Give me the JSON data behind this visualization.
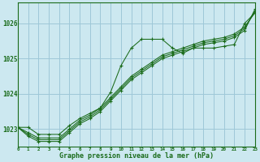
{
  "title": "Graphe pression niveau de la mer (hPa)",
  "background_color": "#cce8f0",
  "grid_color": "#9ec8d8",
  "line_color": "#1a6b1a",
  "xlim": [
    0,
    23
  ],
  "ylim": [
    1022.5,
    1026.6
  ],
  "yticks": [
    1023,
    1024,
    1025,
    1026
  ],
  "xticks": [
    0,
    1,
    2,
    3,
    4,
    5,
    6,
    7,
    8,
    9,
    10,
    11,
    12,
    13,
    14,
    15,
    16,
    17,
    18,
    19,
    20,
    21,
    22,
    23
  ],
  "series": [
    {
      "y": [
        1023.05,
        1023.05,
        1022.85,
        1022.85,
        1022.85,
        1023.1,
        1023.3,
        1023.45,
        1023.6,
        1024.05,
        1024.8,
        1025.3,
        1025.55,
        1025.55,
        1025.55,
        1025.3,
        1025.15,
        1025.3,
        1025.3,
        1025.3,
        1025.35,
        1025.4,
        1026.0,
        1026.3
      ]
    },
    {
      "y": [
        1023.05,
        1022.9,
        1022.75,
        1022.75,
        1022.75,
        1023.0,
        1023.25,
        1023.4,
        1023.6,
        1023.9,
        1024.2,
        1024.5,
        1024.7,
        1024.9,
        1025.1,
        1025.2,
        1025.3,
        1025.4,
        1025.5,
        1025.55,
        1025.6,
        1025.7,
        1025.9,
        1026.3
      ]
    },
    {
      "y": [
        1023.05,
        1022.85,
        1022.7,
        1022.7,
        1022.7,
        1022.95,
        1023.2,
        1023.35,
        1023.55,
        1023.85,
        1024.15,
        1024.45,
        1024.65,
        1024.85,
        1025.05,
        1025.15,
        1025.25,
        1025.35,
        1025.45,
        1025.5,
        1025.55,
        1025.65,
        1025.85,
        1026.35
      ]
    },
    {
      "y": [
        1023.05,
        1022.8,
        1022.65,
        1022.65,
        1022.65,
        1022.9,
        1023.15,
        1023.3,
        1023.5,
        1023.8,
        1024.1,
        1024.4,
        1024.6,
        1024.8,
        1025.0,
        1025.1,
        1025.2,
        1025.3,
        1025.4,
        1025.45,
        1025.5,
        1025.6,
        1025.8,
        1026.4
      ]
    }
  ]
}
